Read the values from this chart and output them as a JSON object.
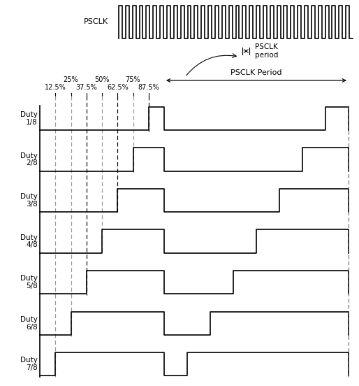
{
  "psclk_label": "PSCLK",
  "psclk_period_label": "PSCLK\nperiod",
  "psclk_Period_label": "PSCLK Period",
  "duty_labels": [
    "Duty\n1/8",
    "Duty\n2/8",
    "Duty\n3/8",
    "Duty\n4/8",
    "Duty\n5/8",
    "Duty\n6/8",
    "Duty\n7/8"
  ],
  "percent_labels": [
    "87.5%",
    "75%",
    "62.5%",
    "50%",
    "37.5%",
    "25%",
    "12.5%"
  ],
  "bg_color": "#ffffff",
  "line_color": "#000000",
  "n_clk_pulses": 34,
  "figw": 5.14,
  "figh": 5.52,
  "dpi": 100
}
